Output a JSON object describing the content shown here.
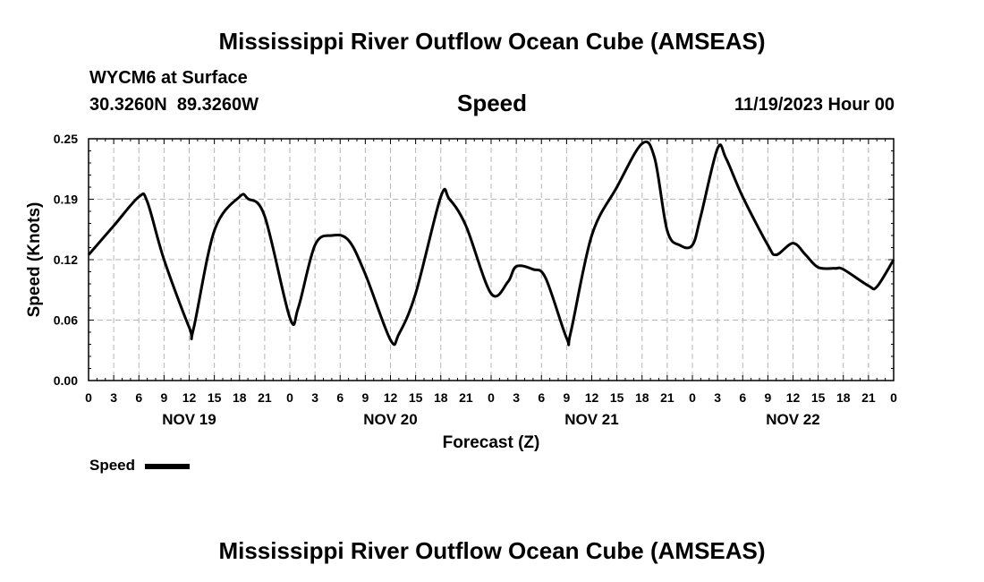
{
  "header": {
    "title": "Mississippi River Outflow Ocean Cube (AMSEAS)",
    "station": "WYCM6 at Surface",
    "coords": "30.3260N  89.3260W",
    "parameter": "Speed",
    "datetime": "11/19/2023 Hour 00",
    "footer_title": "Mississippi River Outflow Ocean Cube (AMSEAS)"
  },
  "legend": {
    "label": "Speed",
    "color": "#000000"
  },
  "chart_data": {
    "type": "line",
    "title": "Speed",
    "xlabel": "Forecast (Z)",
    "ylabel": "Speed (Knots)",
    "ylim": [
      0,
      0.25
    ],
    "xlim": [
      0,
      96
    ],
    "yticks": [
      "0.00",
      "0.06",
      "0.12",
      "0.19",
      "0.25"
    ],
    "ytick_values": [
      0,
      0.0625,
      0.125,
      0.1875,
      0.25
    ],
    "xtick_labels": [
      "0",
      "3",
      "6",
      "9",
      "12",
      "15",
      "18",
      "21",
      "0",
      "3",
      "6",
      "9",
      "12",
      "15",
      "18",
      "21",
      "0",
      "3",
      "6",
      "9",
      "12",
      "15",
      "18",
      "21",
      "0",
      "3",
      "6",
      "9",
      "12",
      "15",
      "18",
      "21",
      "0"
    ],
    "day_labels": [
      {
        "label": "NOV 19",
        "hour": 12
      },
      {
        "label": "NOV 20",
        "hour": 36
      },
      {
        "label": "NOV 21",
        "hour": 60
      },
      {
        "label": "NOV 22",
        "hour": 84
      }
    ],
    "grid": true,
    "series": [
      {
        "name": "Speed",
        "x": [
          0,
          3,
          6,
          7,
          9,
          12,
          12.5,
          15,
          18,
          19,
          21,
          24,
          25,
          27,
          29,
          31,
          33,
          36,
          37,
          39,
          42,
          43,
          45,
          48,
          50,
          51,
          53,
          54.5,
          57,
          57.5,
          60,
          63,
          66,
          67.5,
          69,
          70.5,
          72,
          73,
          75,
          76,
          78,
          81,
          82,
          84,
          85.5,
          87,
          89,
          90,
          93,
          94,
          96
        ],
        "y": [
          0.13,
          0.16,
          0.19,
          0.185,
          0.125,
          0.055,
          0.053,
          0.155,
          0.19,
          0.188,
          0.17,
          0.065,
          0.075,
          0.14,
          0.15,
          0.145,
          0.11,
          0.042,
          0.048,
          0.09,
          0.19,
          0.188,
          0.16,
          0.09,
          0.102,
          0.118,
          0.115,
          0.106,
          0.044,
          0.05,
          0.15,
          0.2,
          0.245,
          0.23,
          0.155,
          0.14,
          0.14,
          0.17,
          0.24,
          0.23,
          0.19,
          0.14,
          0.13,
          0.142,
          0.13,
          0.117,
          0.116,
          0.115,
          0.098,
          0.097,
          0.125
        ]
      }
    ]
  }
}
